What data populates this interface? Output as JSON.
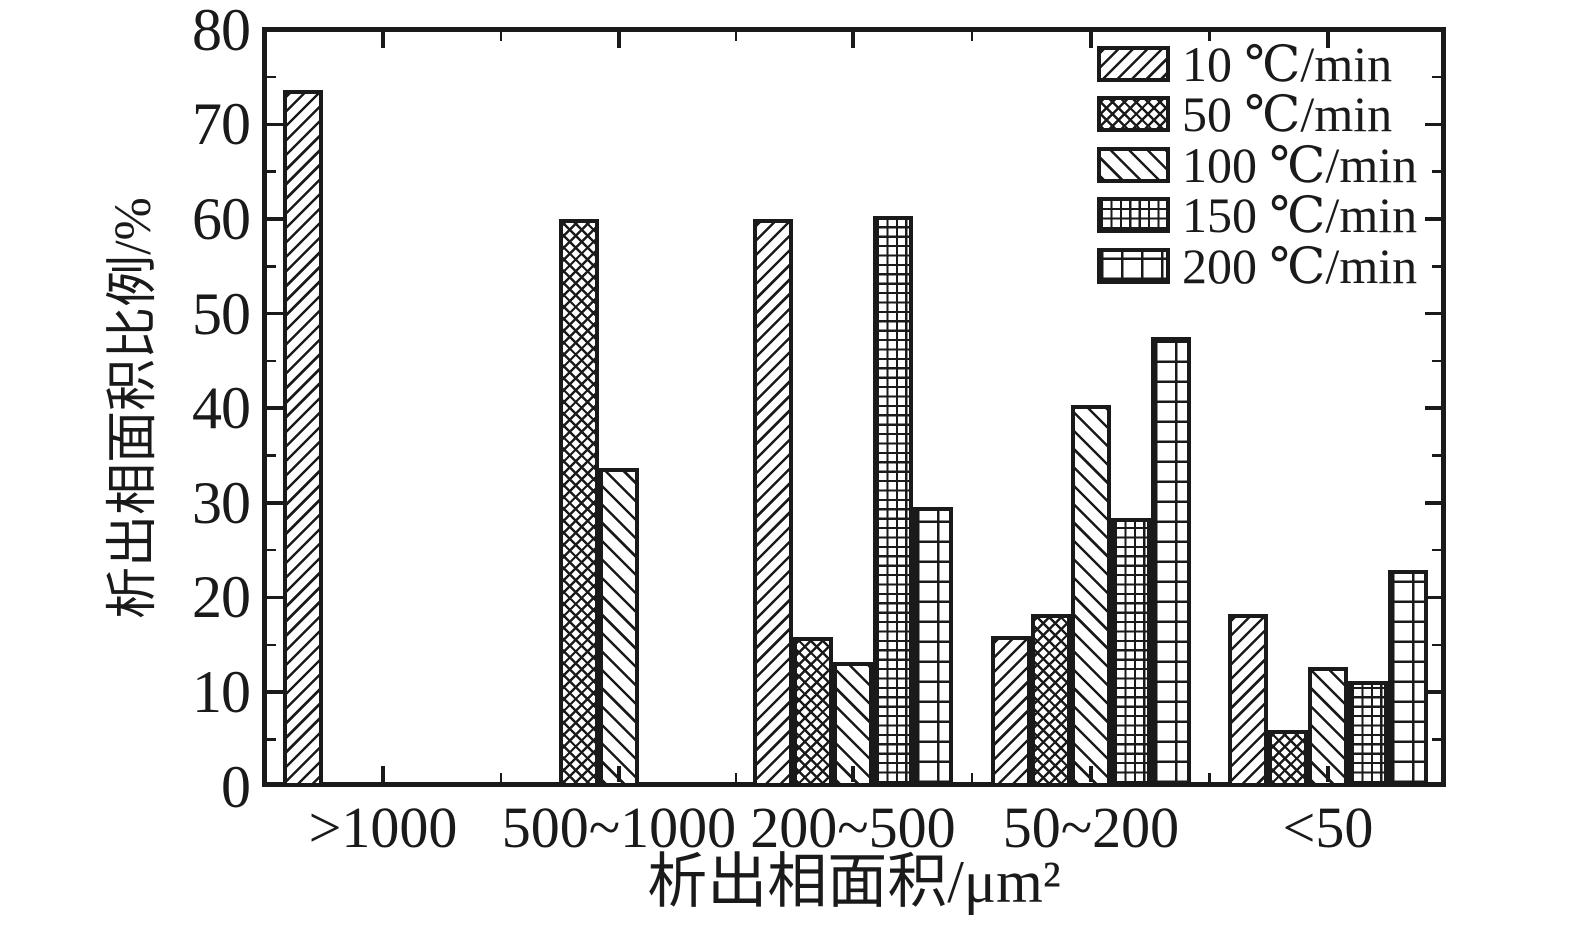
{
  "colors": {
    "ink": "#1a1a1a",
    "background": "#ffffff"
  },
  "chart_data": {
    "type": "bar",
    "title": "",
    "xlabel": "析出相面积/μm²",
    "ylabel": "析出相面积比例/%",
    "categories": [
      ">1000",
      "500~1000",
      "200~500",
      "50~200",
      "<50"
    ],
    "yticks": [
      "0",
      "10",
      "20",
      "30",
      "40",
      "50",
      "60",
      "70",
      "80"
    ],
    "ylim": [
      0,
      80
    ],
    "ytick_step": 10,
    "grid": false,
    "legend_position": "top-right-inside",
    "series": [
      {
        "name": "10 ℃/min",
        "pattern": "diagonal-forward",
        "values": [
          73.6,
          null,
          60.0,
          15.9,
          18.2
        ]
      },
      {
        "name": "50 ℃/min",
        "pattern": "crosshatch",
        "values": [
          null,
          60.0,
          15.8,
          18.2,
          6.0
        ]
      },
      {
        "name": "100 ℃/min",
        "pattern": "diagonal-back",
        "values": [
          null,
          33.7,
          13.2,
          40.3,
          12.7
        ]
      },
      {
        "name": "150 ℃/min",
        "pattern": "grid-fine",
        "values": [
          null,
          null,
          60.3,
          28.4,
          11.2
        ]
      },
      {
        "name": "200 ℃/min",
        "pattern": "grid-coarse",
        "values": [
          null,
          null,
          29.6,
          47.5,
          22.9
        ]
      }
    ]
  }
}
